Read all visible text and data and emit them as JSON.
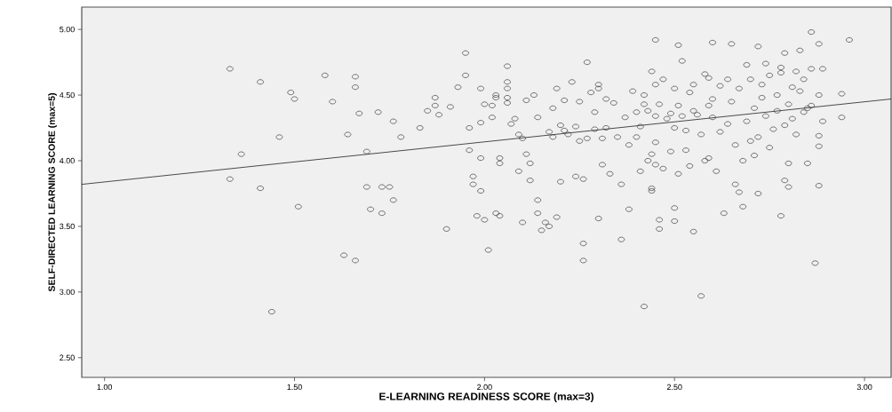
{
  "chart_data": {
    "type": "scatter",
    "xlabel": "E-LEARNING READINESS SCORE (max=3)",
    "ylabel": "SELF-DIRECTED LEARNING SCORE (max=5)",
    "xlim": [
      0.94,
      3.07
    ],
    "ylim": [
      2.35,
      5.17
    ],
    "xticks": [
      {
        "value": 1.0,
        "label": "1.00"
      },
      {
        "value": 1.5,
        "label": "1.50"
      },
      {
        "value": 2.0,
        "label": "2.00"
      },
      {
        "value": 2.5,
        "label": "2.50"
      },
      {
        "value": 3.0,
        "label": "3.00"
      }
    ],
    "yticks": [
      {
        "value": 2.5,
        "label": "2.50"
      },
      {
        "value": 3.0,
        "label": "3.00"
      },
      {
        "value": 3.5,
        "label": "3.50"
      },
      {
        "value": 4.0,
        "label": "4.00"
      },
      {
        "value": 4.5,
        "label": "4.50"
      },
      {
        "value": 5.0,
        "label": "5.00"
      }
    ],
    "grid": false,
    "marker": "circle",
    "series": [
      {
        "color": "#3c3c3c",
        "x": [
          1.33,
          1.33,
          1.36,
          1.41,
          1.41,
          1.44,
          1.46,
          1.49,
          1.5,
          1.51,
          1.58,
          1.6,
          1.63,
          1.64,
          1.66,
          1.66,
          1.66,
          1.67,
          1.69,
          1.69,
          1.7,
          1.72,
          1.73,
          1.73,
          1.75,
          1.76,
          1.76,
          1.78,
          1.83,
          1.85,
          1.87,
          1.87,
          1.88,
          1.9,
          1.91,
          1.93,
          1.95,
          1.95,
          1.96,
          1.96,
          1.97,
          1.97,
          1.98,
          1.99,
          1.99,
          1.99,
          1.99,
          2.0,
          2.0,
          2.01,
          2.02,
          2.02,
          2.03,
          2.03,
          2.03,
          2.04,
          2.04,
          2.04,
          2.06,
          2.06,
          2.06,
          2.06,
          2.06,
          2.07,
          2.08,
          2.09,
          2.09,
          2.1,
          2.1,
          2.11,
          2.11,
          2.12,
          2.12,
          2.13,
          2.14,
          2.14,
          2.14,
          2.15,
          2.16,
          2.17,
          2.17,
          2.18,
          2.18,
          2.19,
          2.19,
          2.2,
          2.2,
          2.21,
          2.21,
          2.22,
          2.23,
          2.24,
          2.24,
          2.25,
          2.25,
          2.26,
          2.26,
          2.26,
          2.27,
          2.27,
          2.28,
          2.29,
          2.29,
          2.3,
          2.3,
          2.3,
          2.31,
          2.31,
          2.32,
          2.32,
          2.33,
          2.34,
          2.35,
          2.36,
          2.36,
          2.37,
          2.38,
          2.38,
          2.39,
          2.4,
          2.4,
          2.41,
          2.41,
          2.42,
          2.42,
          2.42,
          2.43,
          2.43,
          2.44,
          2.44,
          2.44,
          2.44,
          2.45,
          2.45,
          2.45,
          2.45,
          2.45,
          2.46,
          2.46,
          2.46,
          2.47,
          2.47,
          2.48,
          2.49,
          2.49,
          2.5,
          2.5,
          2.5,
          2.5,
          2.51,
          2.51,
          2.51,
          2.52,
          2.52,
          2.53,
          2.53,
          2.54,
          2.54,
          2.55,
          2.55,
          2.55,
          2.56,
          2.57,
          2.57,
          2.58,
          2.58,
          2.59,
          2.59,
          2.59,
          2.6,
          2.6,
          2.6,
          2.61,
          2.62,
          2.62,
          2.63,
          2.64,
          2.64,
          2.65,
          2.65,
          2.66,
          2.66,
          2.67,
          2.67,
          2.68,
          2.68,
          2.69,
          2.69,
          2.7,
          2.7,
          2.71,
          2.71,
          2.72,
          2.72,
          2.72,
          2.73,
          2.73,
          2.74,
          2.74,
          2.75,
          2.75,
          2.76,
          2.77,
          2.77,
          2.78,
          2.78,
          2.78,
          2.79,
          2.79,
          2.79,
          2.8,
          2.8,
          2.8,
          2.81,
          2.81,
          2.82,
          2.82,
          2.83,
          2.83,
          2.84,
          2.84,
          2.85,
          2.85,
          2.86,
          2.86,
          2.86,
          2.87,
          2.88,
          2.88,
          2.88,
          2.88,
          2.88,
          2.89,
          2.89,
          2.94,
          2.94,
          2.96
        ],
        "values": [
          4.7,
          3.86,
          4.05,
          4.6,
          3.79,
          2.85,
          4.18,
          4.52,
          4.47,
          3.65,
          4.65,
          4.45,
          3.28,
          4.2,
          4.64,
          4.56,
          3.24,
          4.36,
          4.07,
          3.8,
          3.63,
          4.37,
          3.6,
          3.8,
          3.8,
          4.3,
          3.7,
          4.18,
          4.25,
          4.38,
          4.48,
          4.42,
          4.35,
          3.48,
          4.41,
          4.56,
          4.82,
          4.65,
          4.25,
          4.08,
          3.82,
          3.88,
          3.58,
          4.29,
          4.02,
          3.77,
          4.55,
          4.43,
          3.55,
          3.32,
          4.42,
          4.33,
          4.5,
          4.48,
          3.6,
          3.58,
          4.02,
          3.98,
          4.72,
          4.6,
          4.55,
          4.48,
          4.44,
          4.28,
          4.32,
          4.2,
          3.92,
          3.53,
          4.17,
          4.46,
          4.05,
          3.85,
          3.98,
          4.5,
          4.33,
          3.6,
          3.7,
          3.47,
          3.53,
          4.22,
          3.5,
          4.18,
          4.4,
          3.57,
          4.55,
          4.27,
          3.84,
          4.23,
          4.46,
          4.2,
          4.6,
          4.26,
          3.88,
          4.15,
          4.45,
          3.37,
          3.24,
          3.86,
          4.75,
          4.17,
          4.52,
          4.37,
          4.24,
          4.58,
          4.55,
          3.56,
          3.97,
          4.17,
          4.25,
          4.47,
          3.9,
          4.44,
          4.18,
          3.4,
          3.82,
          4.33,
          3.63,
          4.12,
          4.53,
          4.18,
          4.37,
          4.26,
          3.92,
          2.89,
          4.5,
          4.43,
          4.38,
          4.0,
          4.68,
          4.05,
          3.77,
          3.79,
          4.92,
          4.58,
          4.34,
          4.14,
          3.97,
          3.48,
          3.55,
          4.43,
          4.62,
          3.94,
          4.32,
          4.07,
          4.36,
          4.55,
          4.25,
          3.64,
          3.54,
          4.88,
          4.42,
          3.9,
          4.76,
          4.34,
          4.23,
          4.08,
          4.52,
          3.96,
          4.58,
          4.38,
          3.46,
          4.35,
          2.97,
          4.2,
          4.66,
          4.0,
          4.63,
          4.42,
          4.02,
          4.47,
          4.9,
          4.33,
          3.92,
          4.57,
          4.22,
          3.6,
          4.28,
          4.62,
          4.89,
          4.45,
          4.12,
          3.82,
          4.55,
          3.76,
          4.0,
          3.65,
          4.73,
          4.3,
          4.15,
          4.62,
          4.04,
          4.4,
          4.87,
          4.18,
          3.75,
          4.58,
          4.48,
          4.74,
          4.34,
          4.65,
          4.1,
          4.24,
          4.5,
          4.38,
          4.71,
          4.67,
          3.58,
          4.82,
          4.27,
          3.85,
          4.43,
          3.98,
          3.8,
          4.56,
          4.32,
          4.68,
          4.2,
          4.53,
          4.84,
          4.37,
          4.62,
          4.4,
          3.98,
          4.98,
          4.42,
          4.7,
          3.22,
          4.89,
          4.5,
          4.19,
          4.11,
          3.81,
          4.7,
          4.3,
          4.51,
          4.33,
          4.92
        ]
      },
      {
        "type": "line",
        "color": "#000000",
        "marker": "none",
        "x": [
          0.94,
          3.07
        ],
        "values": [
          3.82,
          4.47
        ]
      }
    ]
  }
}
